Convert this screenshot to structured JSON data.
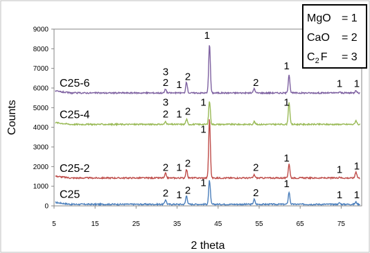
{
  "chart_data": {
    "type": "line",
    "xlabel": "2 theta",
    "ylabel": "Counts",
    "xlim": [
      5,
      80
    ],
    "ylim": [
      0,
      9000
    ],
    "x_ticks": [
      5,
      15,
      25,
      35,
      45,
      55,
      65,
      75
    ],
    "y_ticks": [
      0,
      1000,
      2000,
      3000,
      4000,
      5000,
      6000,
      7000,
      8000,
      9000
    ],
    "grid": false,
    "legend": {
      "position": "top-right",
      "entries": [
        {
          "compound": "MgO",
          "sub": "",
          "rest": "",
          "code": "= 1"
        },
        {
          "compound": "CaO",
          "sub": "",
          "rest": "",
          "code": "= 2"
        },
        {
          "compound": "C",
          "sub": "2",
          "rest": "F",
          "code": "= 3"
        }
      ]
    },
    "series": [
      {
        "name": "C25",
        "color": "#4a7ebb",
        "baseline": 80,
        "peaks": [
          {
            "x": 32.2,
            "y": 320
          },
          {
            "x": 37.3,
            "y": 520
          },
          {
            "x": 42.9,
            "y": 1300
          },
          {
            "x": 53.8,
            "y": 330
          },
          {
            "x": 62.3,
            "y": 700
          },
          {
            "x": 74.6,
            "y": 150
          },
          {
            "x": 78.6,
            "y": 200
          }
        ],
        "labels": [
          {
            "x": 32.2,
            "y": 480,
            "text": "2"
          },
          {
            "x": 35.5,
            "y": 380,
            "text": "1"
          },
          {
            "x": 37.6,
            "y": 620,
            "text": "2"
          },
          {
            "x": 41.4,
            "y": 1000,
            "text": "1"
          },
          {
            "x": 54.2,
            "y": 500,
            "text": "2"
          },
          {
            "x": 61.7,
            "y": 960,
            "text": "1"
          },
          {
            "x": 74.6,
            "y": 380,
            "text": "1"
          },
          {
            "x": 78.8,
            "y": 380,
            "text": "1"
          }
        ]
      },
      {
        "name": "C25-2",
        "color": "#be4b48",
        "baseline": 1420,
        "peaks": [
          {
            "x": 32.2,
            "y": 1650
          },
          {
            "x": 37.3,
            "y": 1850
          },
          {
            "x": 42.9,
            "y": 4450
          },
          {
            "x": 53.8,
            "y": 1580
          },
          {
            "x": 62.3,
            "y": 2150
          },
          {
            "x": 74.6,
            "y": 1480
          },
          {
            "x": 78.6,
            "y": 1750
          }
        ],
        "labels": [
          {
            "x": 32.2,
            "y": 1780,
            "text": "2"
          },
          {
            "x": 35.5,
            "y": 1780,
            "text": "1"
          },
          {
            "x": 37.6,
            "y": 2000,
            "text": "2"
          },
          {
            "x": 41.4,
            "y": 3720,
            "text": "1"
          },
          {
            "x": 54.2,
            "y": 1780,
            "text": "2"
          },
          {
            "x": 61.7,
            "y": 2260,
            "text": "1"
          },
          {
            "x": 74.6,
            "y": 1680,
            "text": "1"
          },
          {
            "x": 78.8,
            "y": 1850,
            "text": "1"
          }
        ]
      },
      {
        "name": "C25-4",
        "color": "#98b954",
        "baseline": 4150,
        "peaks": [
          {
            "x": 32.2,
            "y": 4300
          },
          {
            "x": 37.3,
            "y": 4400
          },
          {
            "x": 42.9,
            "y": 5350
          },
          {
            "x": 53.8,
            "y": 4300
          },
          {
            "x": 62.3,
            "y": 5300
          },
          {
            "x": 78.6,
            "y": 4350
          }
        ],
        "labels": [
          {
            "x": 32.2,
            "y": 5100,
            "text": "3"
          },
          {
            "x": 32.2,
            "y": 4500,
            "text": "2"
          },
          {
            "x": 35.5,
            "y": 4500,
            "text": "1"
          },
          {
            "x": 37.6,
            "y": 4650,
            "text": "2"
          },
          {
            "x": 41.4,
            "y": 5100,
            "text": "1"
          },
          {
            "x": 61.7,
            "y": 5100,
            "text": "1"
          }
        ]
      },
      {
        "name": "C25-6",
        "color": "#7d60a0",
        "baseline": 5750,
        "peaks": [
          {
            "x": 32.2,
            "y": 5950
          },
          {
            "x": 37.3,
            "y": 6300
          },
          {
            "x": 42.9,
            "y": 8250
          },
          {
            "x": 53.8,
            "y": 5980
          },
          {
            "x": 62.3,
            "y": 6700
          },
          {
            "x": 74.6,
            "y": 5800
          },
          {
            "x": 78.6,
            "y": 5900
          }
        ],
        "labels": [
          {
            "x": 32.2,
            "y": 6650,
            "text": "3"
          },
          {
            "x": 32.2,
            "y": 6100,
            "text": "2"
          },
          {
            "x": 35.5,
            "y": 6000,
            "text": "1"
          },
          {
            "x": 37.6,
            "y": 6400,
            "text": "2"
          },
          {
            "x": 42.3,
            "y": 8500,
            "text": "1"
          },
          {
            "x": 54.2,
            "y": 6100,
            "text": "2"
          },
          {
            "x": 61.7,
            "y": 6950,
            "text": "1"
          },
          {
            "x": 74.6,
            "y": 6050,
            "text": "1"
          },
          {
            "x": 78.8,
            "y": 6050,
            "text": "1"
          }
        ]
      }
    ]
  }
}
